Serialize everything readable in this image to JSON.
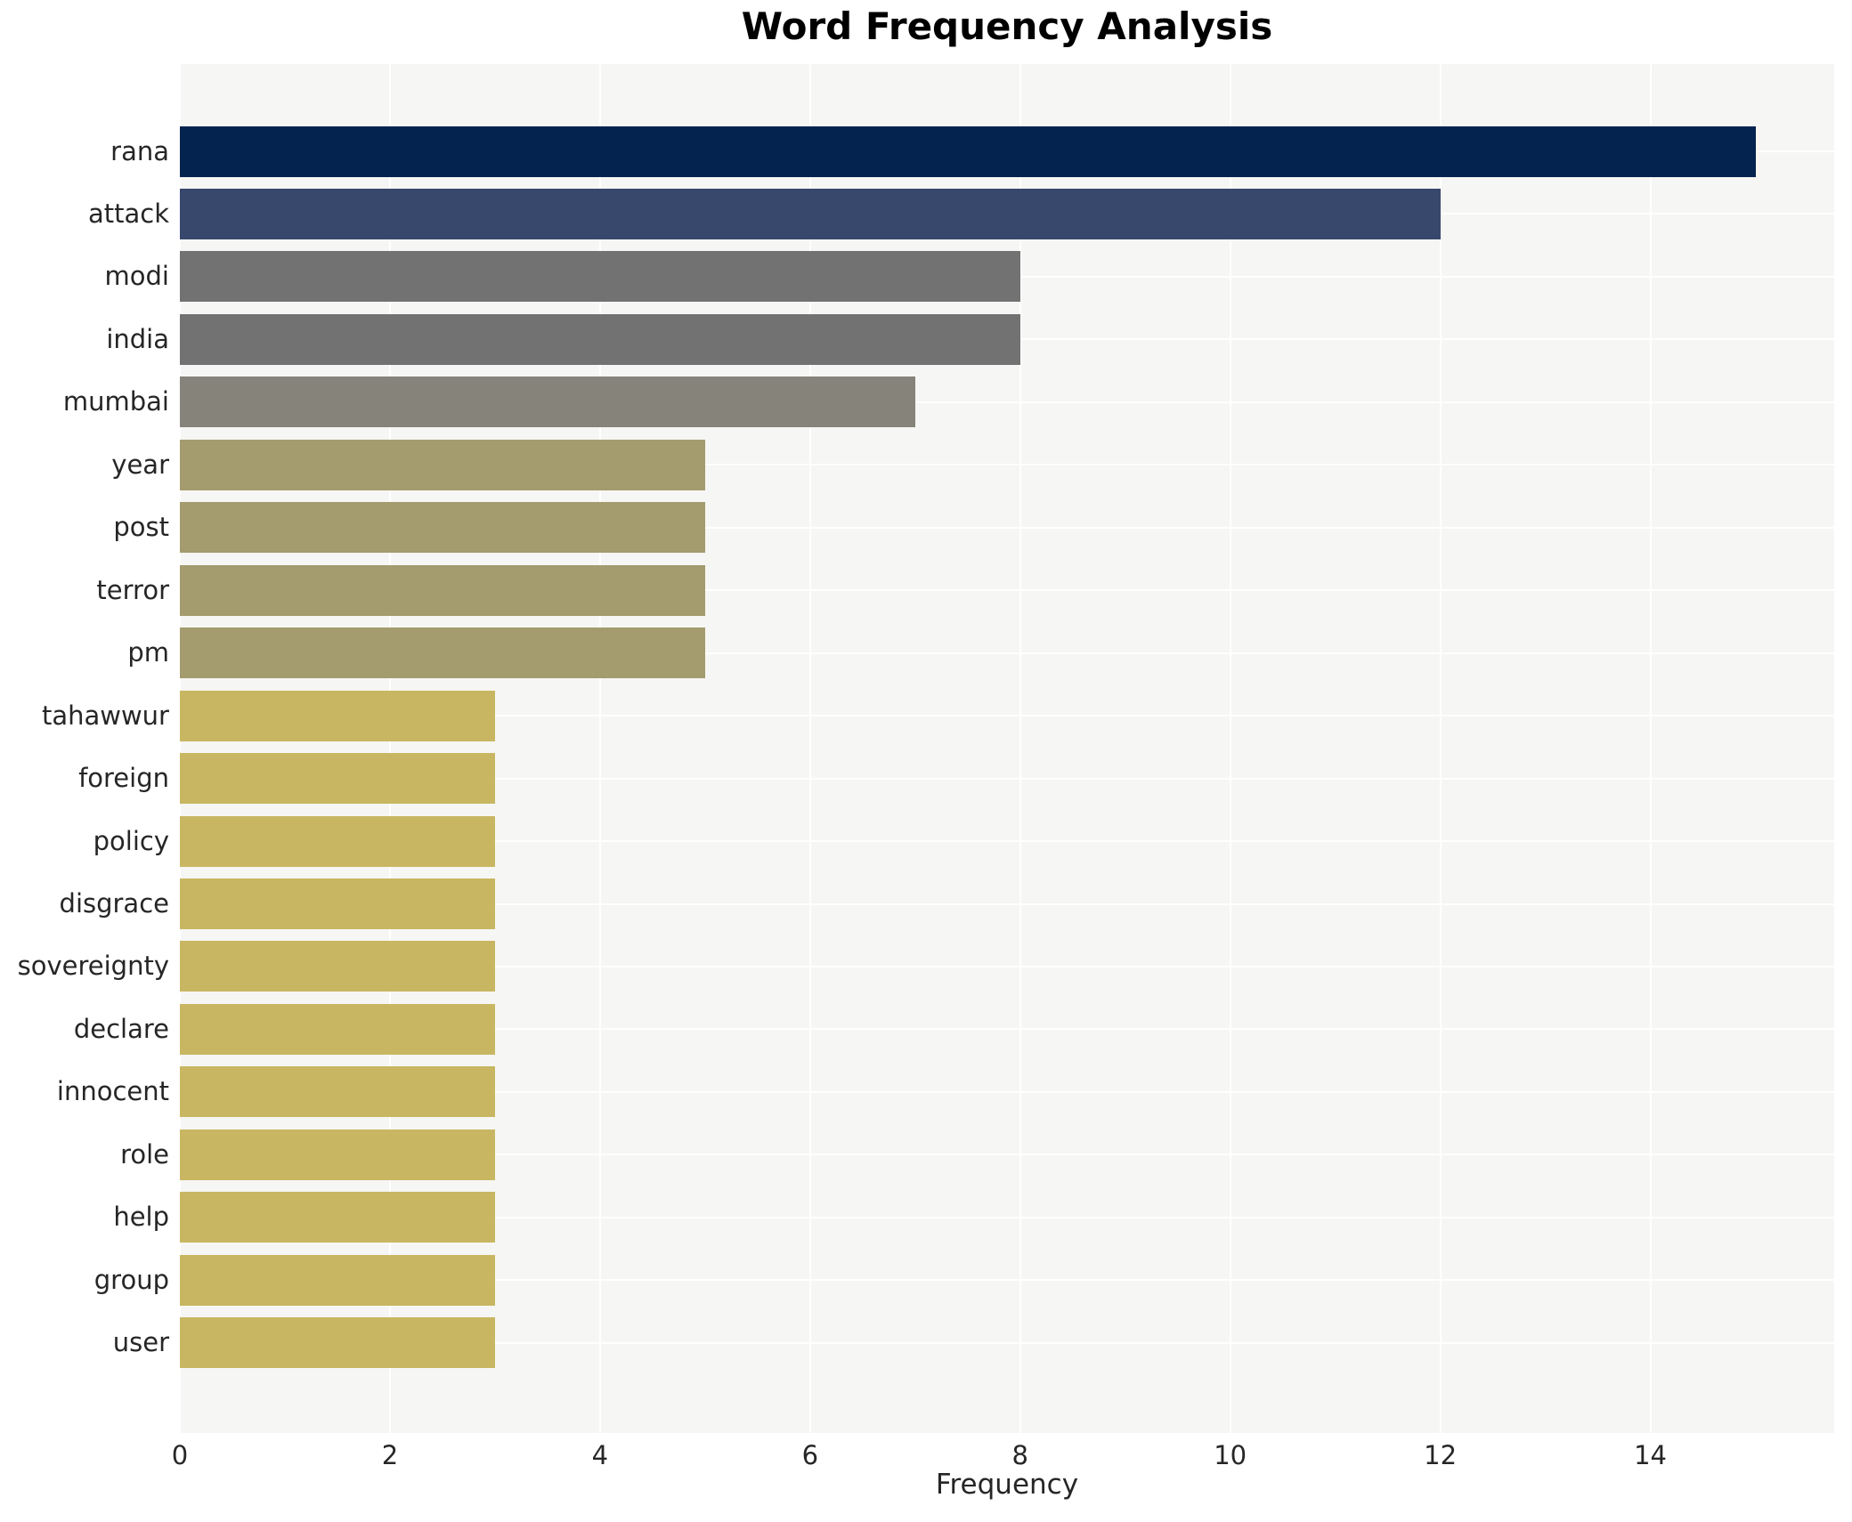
{
  "chart_data": {
    "type": "bar",
    "orientation": "horizontal",
    "title": "Word Frequency Analysis",
    "xlabel": "Frequency",
    "ylabel": "",
    "categories": [
      "rana",
      "attack",
      "modi",
      "india",
      "mumbai",
      "year",
      "post",
      "terror",
      "pm",
      "tahawwur",
      "foreign",
      "policy",
      "disgrace",
      "sovereignty",
      "declare",
      "innocent",
      "role",
      "help",
      "group",
      "user"
    ],
    "values": [
      15,
      12,
      8,
      8,
      7,
      5,
      5,
      5,
      5,
      3,
      3,
      3,
      3,
      3,
      3,
      3,
      3,
      3,
      3,
      3
    ],
    "bar_colors": [
      "#04234f",
      "#38476c",
      "#727272",
      "#727272",
      "#86837a",
      "#a49b6e",
      "#a49b6e",
      "#a49b6e",
      "#a49b6e",
      "#c8b662",
      "#c8b662",
      "#c8b662",
      "#c8b662",
      "#c8b662",
      "#c8b662",
      "#c8b662",
      "#c8b662",
      "#c8b662",
      "#c8b662",
      "#c8b662"
    ],
    "xticks": [
      0,
      2,
      4,
      6,
      8,
      10,
      12,
      14
    ],
    "xlim": [
      0,
      15.75
    ],
    "grid": true,
    "legend": false,
    "plot_bg": "#f6f6f4",
    "grid_color": "#ffffff",
    "text_color": "#262626"
  }
}
